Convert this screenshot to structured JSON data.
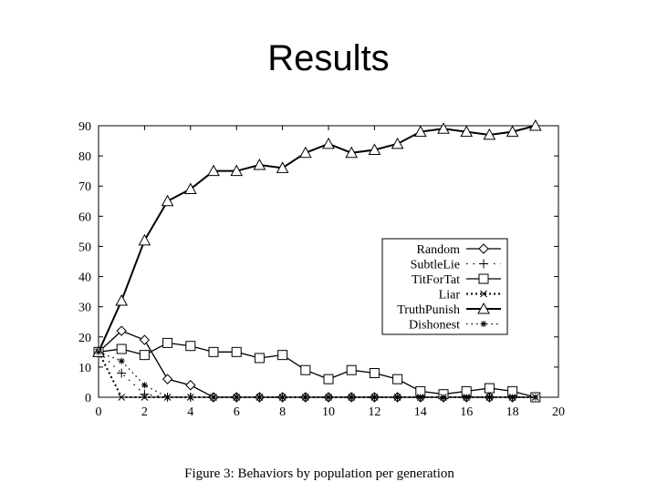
{
  "slide": {
    "title": "Results"
  },
  "chart_data": {
    "type": "line",
    "title": "",
    "caption": "Figure 3: Behaviors by population per generation",
    "xlabel": "",
    "ylabel": "",
    "xlim": [
      0,
      20
    ],
    "ylim": [
      0,
      90
    ],
    "x_ticks": [
      0,
      2,
      4,
      6,
      8,
      10,
      12,
      14,
      16,
      18,
      20
    ],
    "y_ticks": [
      0,
      10,
      20,
      30,
      40,
      50,
      60,
      70,
      80,
      90
    ],
    "grid": false,
    "legend_position": "right-middle",
    "series": [
      {
        "name": "Random",
        "marker": "diamond",
        "line": "solid",
        "x": [
          0,
          1,
          2,
          3,
          4,
          5,
          6,
          7,
          8,
          9,
          10,
          11,
          12,
          13,
          14,
          15,
          16,
          17,
          18,
          19
        ],
        "y": [
          15,
          22,
          19,
          6,
          4,
          0,
          0,
          0,
          0,
          0,
          0,
          0,
          0,
          0,
          0,
          0,
          0,
          0,
          0,
          0
        ]
      },
      {
        "name": "SubtleLie",
        "marker": "plus",
        "line": "dotted-sparse",
        "x": [
          0,
          1,
          2,
          3,
          4,
          5,
          6,
          7,
          8,
          9,
          10,
          11,
          12,
          13,
          14,
          15,
          16,
          17,
          18,
          19
        ],
        "y": [
          15,
          8,
          1,
          0,
          0,
          0,
          0,
          0,
          0,
          0,
          0,
          0,
          0,
          0,
          0,
          0,
          0,
          0,
          0,
          0
        ]
      },
      {
        "name": "TitForTat",
        "marker": "square",
        "line": "solid",
        "x": [
          0,
          1,
          2,
          3,
          4,
          5,
          6,
          7,
          8,
          9,
          10,
          11,
          12,
          13,
          14,
          15,
          16,
          17,
          18,
          19
        ],
        "y": [
          15,
          16,
          14,
          18,
          17,
          15,
          15,
          13,
          14,
          9,
          6,
          9,
          8,
          6,
          2,
          1,
          2,
          3,
          2,
          0
        ]
      },
      {
        "name": "Liar",
        "marker": "x",
        "line": "dotted-dense",
        "x": [
          0,
          1,
          2,
          3,
          4,
          5,
          6,
          7,
          8,
          9,
          10,
          11,
          12,
          13,
          14,
          15,
          16,
          17,
          18,
          19
        ],
        "y": [
          15,
          0,
          0,
          0,
          0,
          0,
          0,
          0,
          0,
          0,
          0,
          0,
          0,
          0,
          0,
          0,
          0,
          0,
          0,
          0
        ]
      },
      {
        "name": "TruthPunish",
        "marker": "triangle",
        "line": "thick",
        "x": [
          0,
          1,
          2,
          3,
          4,
          5,
          6,
          7,
          8,
          9,
          10,
          11,
          12,
          13,
          14,
          15,
          16,
          17,
          18,
          19
        ],
        "y": [
          15,
          32,
          52,
          65,
          69,
          75,
          75,
          77,
          76,
          81,
          84,
          81,
          82,
          84,
          88,
          89,
          88,
          87,
          88,
          90
        ]
      },
      {
        "name": "Dishonest",
        "marker": "star",
        "line": "dotted",
        "x": [
          0,
          1,
          2,
          3,
          4,
          5,
          6,
          7,
          8,
          9,
          10,
          11,
          12,
          13,
          14,
          15,
          16,
          17,
          18,
          19
        ],
        "y": [
          15,
          12,
          4,
          0,
          0,
          0,
          0,
          0,
          0,
          0,
          0,
          0,
          0,
          0,
          0,
          0,
          0,
          0,
          0,
          0
        ]
      }
    ]
  }
}
